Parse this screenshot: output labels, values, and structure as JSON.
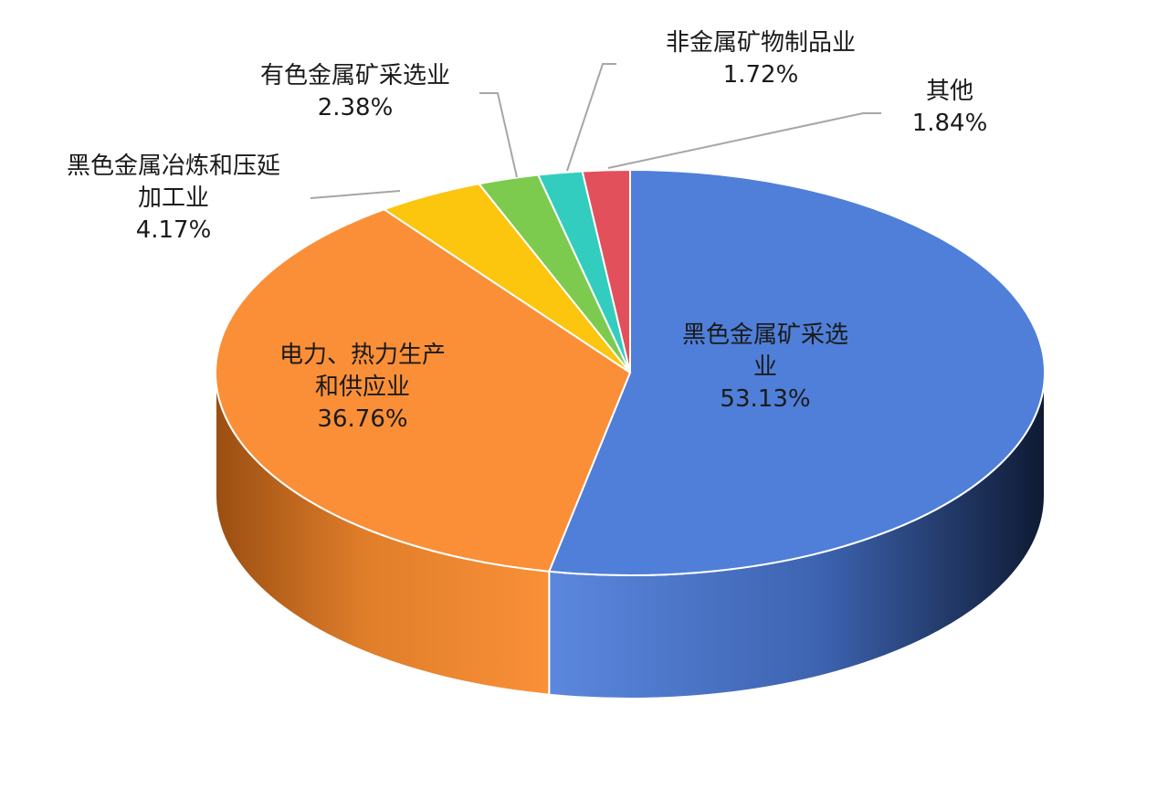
{
  "chart_data": {
    "type": "pie",
    "style": "3d",
    "title": "",
    "slices": [
      {
        "label_lines": [
          "黑色金属矿采选",
          "业"
        ],
        "percent_text": "53.13%",
        "value": 53.13,
        "color": "#4f7fd8"
      },
      {
        "label_lines": [
          "电力、热力生产",
          "和供应业"
        ],
        "percent_text": "36.76%",
        "value": 36.76,
        "color": "#fa8f38"
      },
      {
        "label_lines": [
          "黑色金属冶炼和压延",
          "加工业"
        ],
        "percent_text": "4.17%",
        "value": 4.17,
        "color": "#fcc50e"
      },
      {
        "label_lines": [
          "有色金属矿采选业"
        ],
        "percent_text": "2.38%",
        "value": 2.38,
        "color": "#7ccb4f"
      },
      {
        "label_lines": [
          "非金属矿物制品业"
        ],
        "percent_text": "1.72%",
        "value": 1.72,
        "color": "#33cdbf"
      },
      {
        "label_lines": [
          "其他"
        ],
        "percent_text": "1.84%",
        "value": 1.84,
        "color": "#e2505c"
      }
    ]
  }
}
